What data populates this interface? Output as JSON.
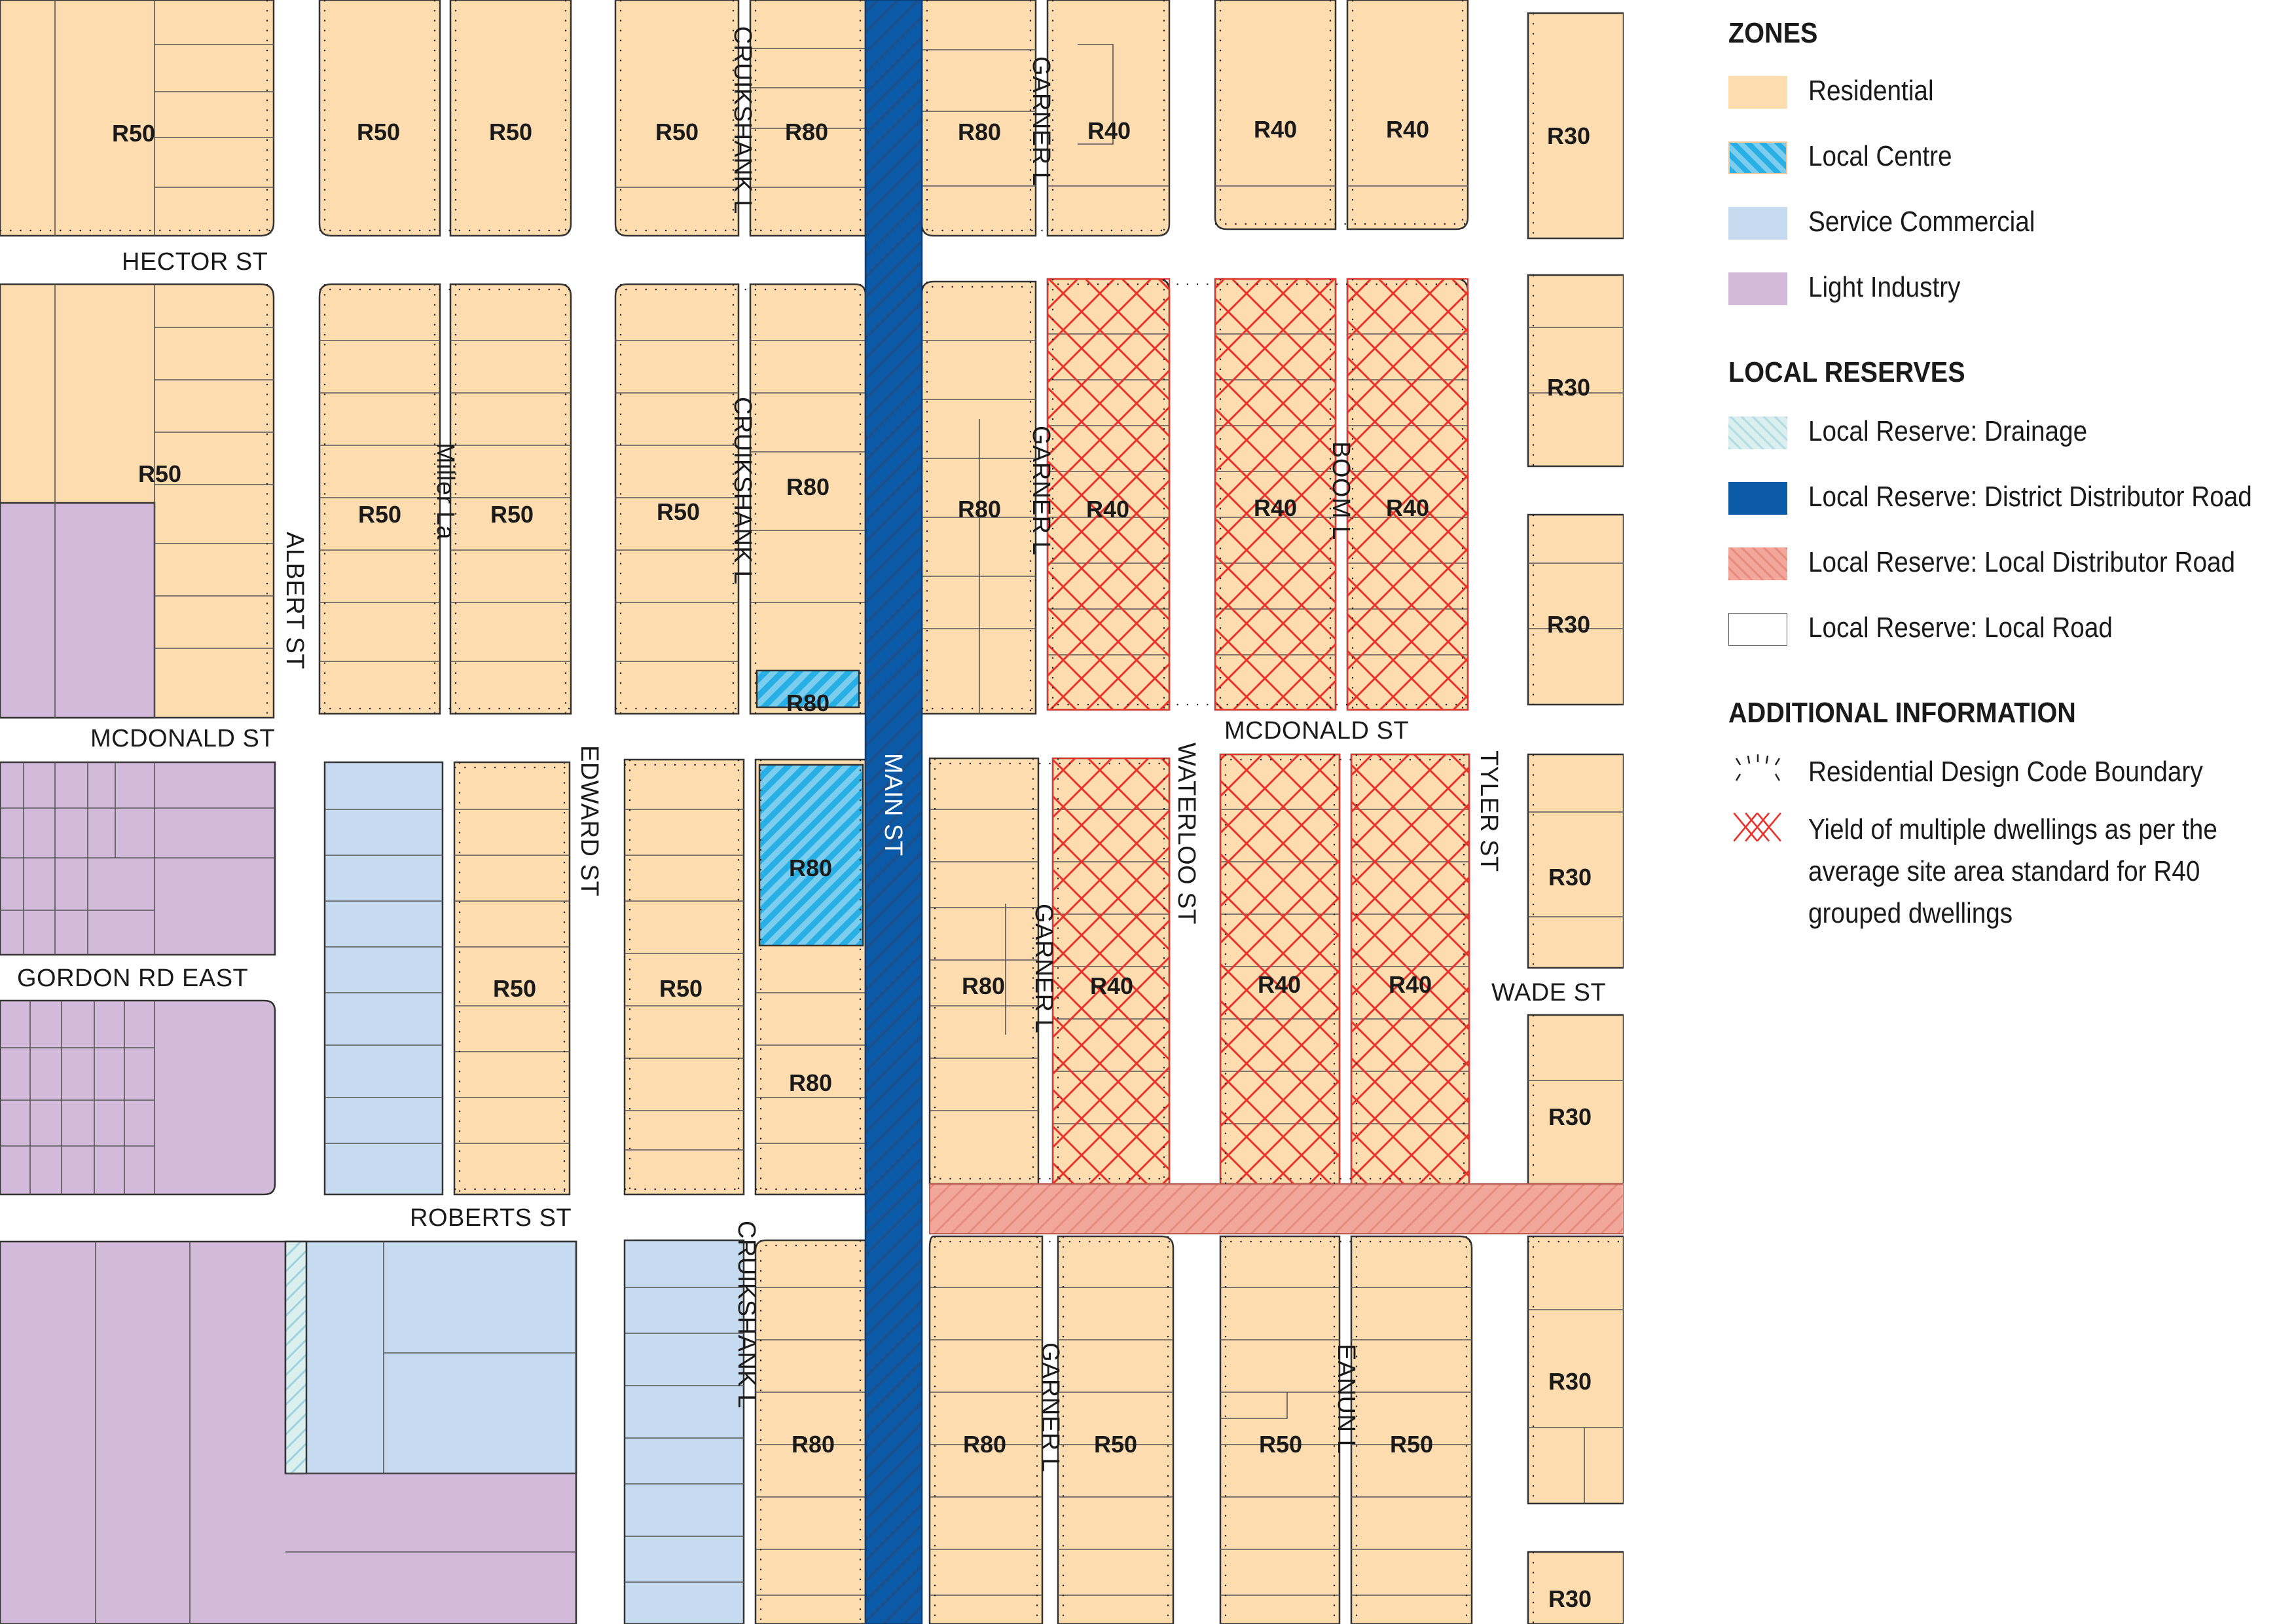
{
  "colors": {
    "residential": "#fddcb0",
    "local_centre_fill": "#7ccdee",
    "local_centre_hatch": "#28b0e6",
    "service_commercial": "#c6dbef",
    "light_industry": "#d3b9da",
    "drainage_fill": "#dcefef",
    "district_road": "#0a5aa8",
    "local_distributor": "#f2a79b",
    "yield_hatch": "#e8322a",
    "lot_line": "#555555"
  },
  "streets": {
    "hector": "HECTOR ST",
    "albert": "ALBERT ST",
    "miller": "Miller La",
    "cruikshank_n": "CRUIKSHANK L",
    "cruikshank_m": "CRUIKSHANK L",
    "cruikshank_s": "CRUIKSHANK L",
    "main": "MAIN ST",
    "garner_n": "GARNER L",
    "garner_m": "GARNER L",
    "garner_s1": "GARNER L",
    "garner_s2": "GARNER L",
    "boom": "BOOM L",
    "mcdonald_w": "MCDONALD ST",
    "mcdonald_e": "MCDONALD ST",
    "edward": "EDWARD ST",
    "waterloo": "WATERLOO ST",
    "tyler": "TYLER ST",
    "gordon": "GORDON RD EAST",
    "wade": "WADE ST",
    "roberts": "ROBERTS ST",
    "eanun": "EANUN L"
  },
  "rcodes": [
    "R50",
    "R50",
    "R50",
    "R50",
    "R80",
    "R80",
    "R40",
    "R40",
    "R40",
    "R30",
    "R50",
    "R50",
    "R50",
    "R50",
    "R80",
    "R80",
    "R40",
    "R40",
    "R40",
    "R30",
    "R30",
    "R80",
    "R80",
    "R50",
    "R50",
    "R80",
    "R40",
    "R40",
    "R40",
    "R30",
    "R80",
    "R30",
    "R80",
    "R80",
    "R50",
    "R50",
    "R50",
    "R30",
    "R30"
  ],
  "legend": {
    "zones_heading": "ZONES",
    "zones": [
      {
        "label": "Residential",
        "swatch": "residential"
      },
      {
        "label": "Local Centre",
        "swatch": "local-centre"
      },
      {
        "label": "Service Commercial",
        "swatch": "service-commercial"
      },
      {
        "label": "Light Industry",
        "swatch": "light-industry"
      }
    ],
    "reserves_heading": "LOCAL RESERVES",
    "reserves": [
      {
        "label": "Local Reserve: Drainage",
        "swatch": "drainage"
      },
      {
        "label": "Local Reserve: District Distributor Road",
        "swatch": "district-road"
      },
      {
        "label": "Local Reserve: Local Distributor Road",
        "swatch": "local-distributor"
      },
      {
        "label": "Local Reserve: Local Road",
        "swatch": "local-road"
      }
    ],
    "additional_heading": "ADDITIONAL INFORMATION",
    "additional": [
      {
        "label": "Residential Design Code Boundary",
        "swatch": "rcode-boundary"
      },
      {
        "label_lines": [
          "Yield of multiple dwellings as per the",
          "average site area standard for R40",
          "grouped dwellings"
        ],
        "swatch": "yield-hatch"
      }
    ]
  }
}
